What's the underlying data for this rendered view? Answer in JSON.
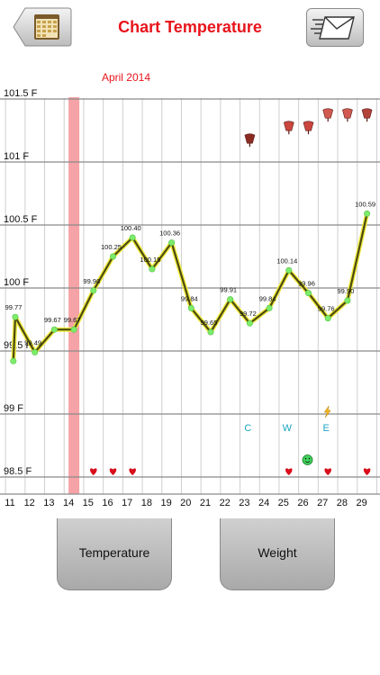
{
  "header": {
    "title": "Chart Temperature",
    "back_icon": "calendar-icon",
    "mail_icon": "envelope-icon"
  },
  "chart_data": {
    "type": "line",
    "title": "April 2014",
    "y_ticks": [
      "101.5 F",
      "101 F",
      "100.5 F",
      "100 F",
      "99.5 F",
      "99 F",
      "98.5 F"
    ],
    "y_tick_values": [
      101.5,
      101,
      100.5,
      100,
      99.5,
      99,
      98.5
    ],
    "ylim": [
      98.3,
      101.6
    ],
    "x_days": [
      "11",
      "12",
      "13",
      "14",
      "15",
      "16",
      "17",
      "18",
      "19",
      "20",
      "21",
      "22",
      "23",
      "24",
      "25",
      "26",
      "27",
      "28",
      "29"
    ],
    "points": [
      {
        "day": 10.9,
        "value": 99.42,
        "label": ""
      },
      {
        "day": 11,
        "value": 99.77,
        "label": "99.77"
      },
      {
        "day": 12,
        "value": 99.49,
        "label": "99.49"
      },
      {
        "day": 13,
        "value": 99.67,
        "label": "99.67"
      },
      {
        "day": 14,
        "value": 99.67,
        "label": "99.67"
      },
      {
        "day": 15,
        "value": 99.98,
        "label": "99.98"
      },
      {
        "day": 16,
        "value": 100.25,
        "label": "100.25"
      },
      {
        "day": 17,
        "value": 100.4,
        "label": "100.40"
      },
      {
        "day": 18,
        "value": 100.15,
        "label": "100.15"
      },
      {
        "day": 19,
        "value": 100.36,
        "label": "100.36"
      },
      {
        "day": 20,
        "value": 99.84,
        "label": "99.84"
      },
      {
        "day": 21,
        "value": 99.65,
        "label": "99.65"
      },
      {
        "day": 22,
        "value": 99.91,
        "label": "99.91"
      },
      {
        "day": 23,
        "value": 99.72,
        "label": "99.72"
      },
      {
        "day": 24,
        "value": 99.84,
        "label": "99.84"
      },
      {
        "day": 25,
        "value": 100.14,
        "label": "100.14"
      },
      {
        "day": 26,
        "value": 99.96,
        "label": "99.96"
      },
      {
        "day": 27,
        "value": 99.76,
        "label": "99.76"
      },
      {
        "day": 28,
        "value": 99.9,
        "label": "99.90"
      },
      {
        "day": 29,
        "value": 100.59,
        "label": "100.59"
      }
    ],
    "highlight_day": 14,
    "highlight_color": "#f5a3a6",
    "line_color": "#4a4a12",
    "line_glow_color": "#f0ea3c",
    "point_color": "#7dec6a",
    "heart_days": [
      15,
      16,
      17,
      25,
      27,
      29
    ],
    "heart_color": "#d80e1b",
    "bell_markers": [
      {
        "day": 23,
        "value": 101.17,
        "color": "#8b2b22"
      },
      {
        "day": 25,
        "value": 101.27,
        "color": "#c9473e"
      },
      {
        "day": 26,
        "value": 101.27,
        "color": "#c9473e"
      },
      {
        "day": 27,
        "value": 101.37,
        "color": "#d15a50"
      },
      {
        "day": 28,
        "value": 101.37,
        "color": "#d15a50"
      },
      {
        "day": 29,
        "value": 101.37,
        "color": "#b2433a"
      }
    ],
    "letter_markers": [
      {
        "day": 23,
        "text": "C"
      },
      {
        "day": 25,
        "text": "W"
      },
      {
        "day": 27,
        "text": "E"
      }
    ],
    "letter_color": "#1ba6c2",
    "bolt_day": 27,
    "smiley_day": 26
  },
  "tabs": [
    {
      "label": "Temperature"
    },
    {
      "label": "Weight"
    }
  ]
}
